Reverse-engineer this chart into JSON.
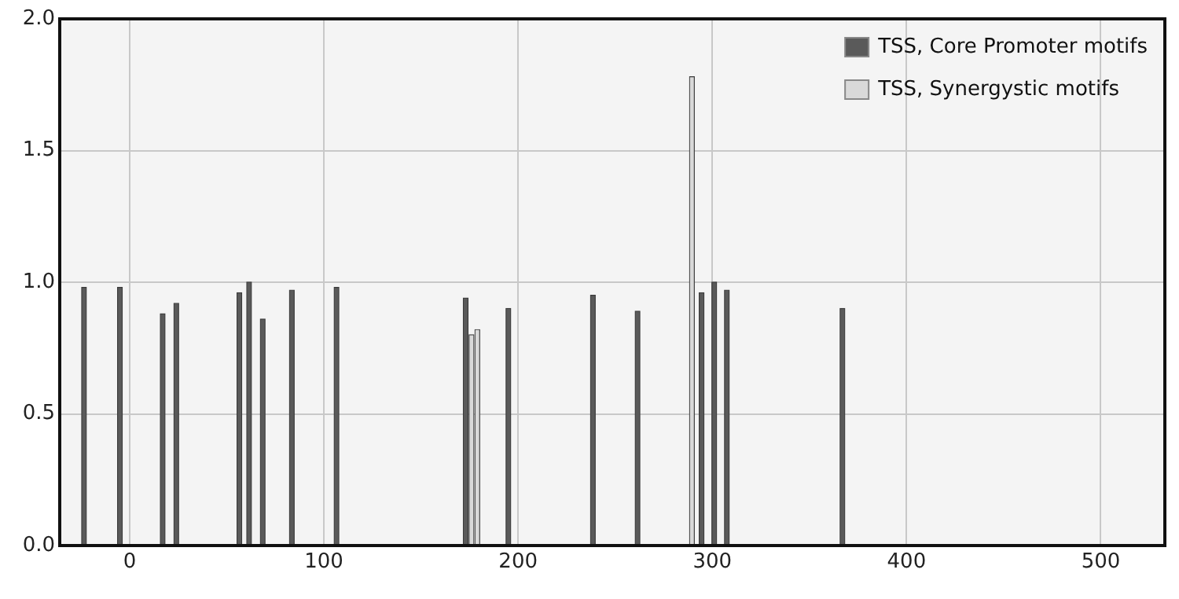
{
  "chart_data": {
    "type": "bar",
    "xlim": [
      -36,
      533
    ],
    "xticks": [
      0,
      100,
      200,
      300,
      400,
      500
    ],
    "ylim": [
      0,
      2
    ],
    "yticks": [
      {
        "value": 0,
        "label": "0.0"
      },
      {
        "value": 0.5,
        "label": "0.5"
      },
      {
        "value": 1,
        "label": "1.0"
      },
      {
        "value": 1.5,
        "label": "1.5"
      },
      {
        "value": 2,
        "label": "2.0"
      }
    ],
    "grid": true,
    "legend": "top right",
    "series": [
      {
        "name": "TSS, Core Promoter motifs",
        "color": "#5a5a5a",
        "x": [
          -23.5,
          -5,
          17,
          24,
          56.5,
          61.5,
          68.5,
          83.5,
          106.5,
          173,
          195,
          238.5,
          261.5,
          294.5,
          301,
          307.5,
          367
        ],
        "values": [
          0.98,
          0.98,
          0.88,
          0.92,
          0.96,
          1.0,
          0.86,
          0.97,
          0.98,
          0.94,
          0.9,
          0.95,
          0.89,
          0.96,
          1.0,
          0.97,
          0.9
        ]
      },
      {
        "name": "TSS, Synergystic motifs",
        "color": "#d9d9d9",
        "x": [
          176,
          179,
          289.5
        ],
        "values": [
          0.8,
          0.82,
          1.78
        ]
      }
    ]
  }
}
